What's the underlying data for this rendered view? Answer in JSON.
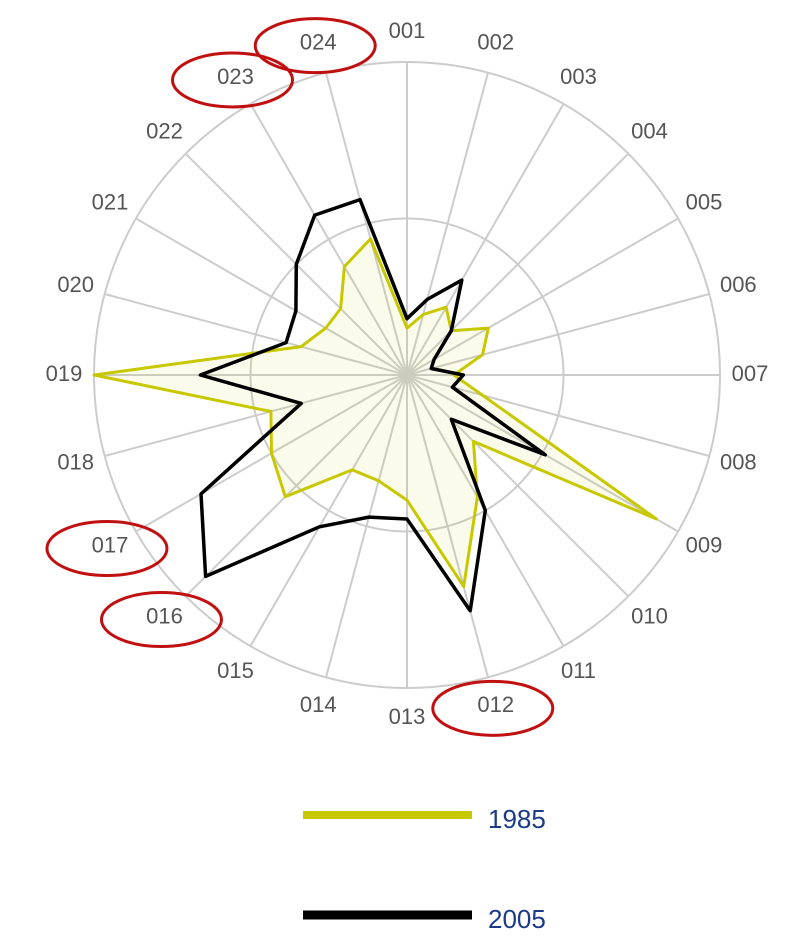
{
  "chart_data": {
    "type": "radar",
    "categories": [
      "001",
      "002",
      "003",
      "004",
      "005",
      "006",
      "007",
      "008",
      "009",
      "010",
      "011",
      "012",
      "013",
      "014",
      "015",
      "016",
      "017",
      "018",
      "019",
      "020",
      "021",
      "022",
      "023",
      "024"
    ],
    "series": [
      {
        "name": "1985",
        "color": "#c8c800",
        "values": [
          15,
          20,
          25,
          20,
          30,
          25,
          15,
          25,
          92,
          30,
          45,
          70,
          40,
          35,
          35,
          55,
          50,
          45,
          100,
          35,
          30,
          30,
          40,
          45
        ]
      },
      {
        "name": "2005",
        "color": "#000000",
        "values": [
          18,
          25,
          35,
          20,
          10,
          8,
          18,
          15,
          51,
          20,
          50,
          78,
          46,
          47,
          56,
          91,
          76,
          35,
          66,
          40,
          41,
          50,
          59,
          58
        ]
      }
    ],
    "rlim": [
      0,
      100
    ],
    "rticks": [
      50,
      100
    ],
    "grid": true,
    "highlight": [
      "024",
      "023",
      "017",
      "016",
      "012"
    ]
  }
}
